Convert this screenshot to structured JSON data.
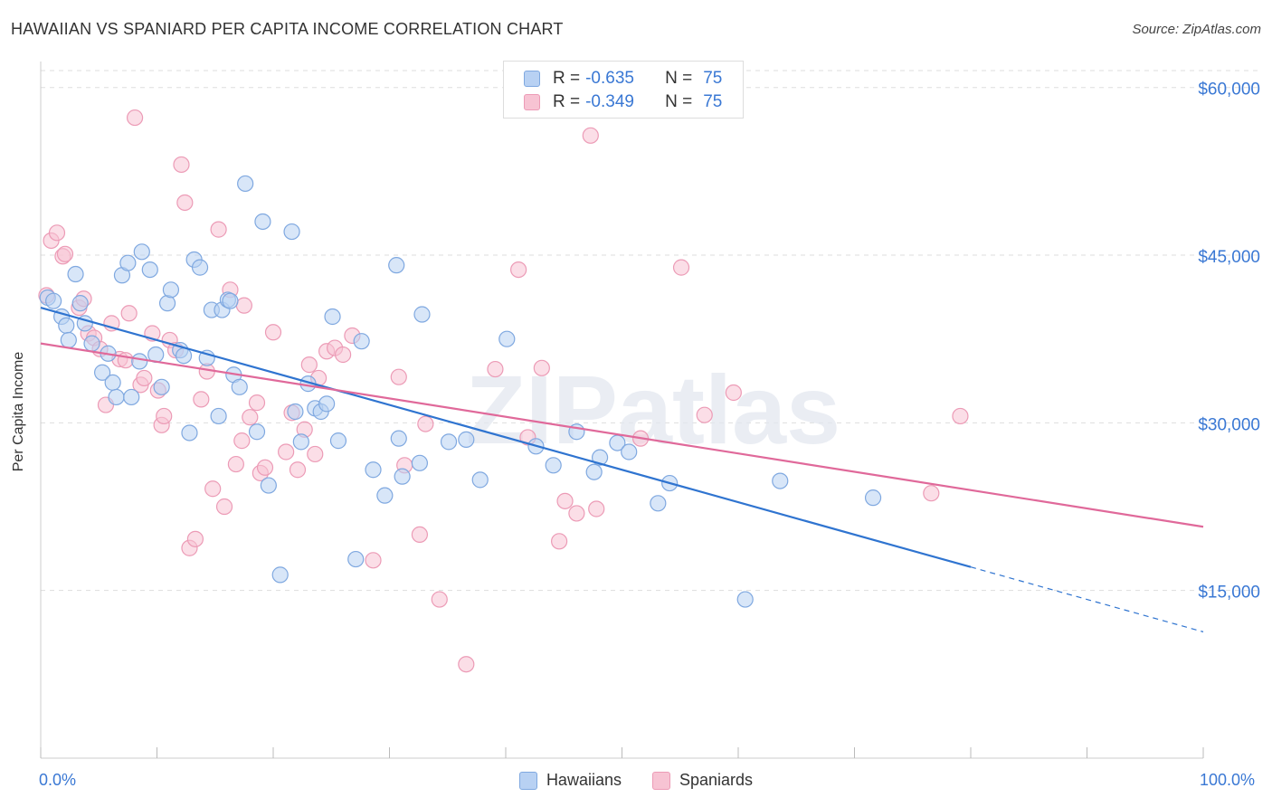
{
  "header": {
    "title": "HAWAIIAN VS SPANIARD PER CAPITA INCOME CORRELATION CHART",
    "source": "Source: ZipAtlas.com"
  },
  "watermark": "ZIPatlas",
  "legend_top": {
    "rows": [
      {
        "r_label": "R =",
        "r_value": "-0.635",
        "n_label": "N =",
        "n_value": "75"
      },
      {
        "r_label": "R =",
        "r_value": "-0.349",
        "n_label": "N =",
        "n_value": "75"
      }
    ]
  },
  "legend_bottom": [
    "Hawaiians",
    "Spaniards"
  ],
  "colors": {
    "hawaiians_fill": "#b8d1f3",
    "hawaiians_stroke": "#7fa8e0",
    "hawaiians_line": "#2f74d0",
    "spaniards_fill": "#f7c3d3",
    "spaniards_stroke": "#ec9bb6",
    "spaniards_line": "#e0699a",
    "axis_text": "#3a78d4",
    "grid": "#dddddd"
  },
  "chart_data": {
    "type": "scatter",
    "title": "HAWAIIAN VS SPANIARD PER CAPITA INCOME CORRELATION CHART",
    "xlabel": "",
    "ylabel": "Per Capita Income",
    "xlim": [
      0,
      100
    ],
    "ylim": [
      0,
      62000
    ],
    "x_tick_labels": [
      "0.0%",
      "100.0%"
    ],
    "y_ticks": [
      15000,
      30000,
      45000,
      60000
    ],
    "y_tick_labels": [
      "$15,000",
      "$30,000",
      "$45,000",
      "$60,000"
    ],
    "grid": true,
    "legend_position": "top-center",
    "series": [
      {
        "name": "Hawaiians",
        "r": -0.635,
        "n": 75,
        "trend": {
          "x0": 0,
          "y0": 40300,
          "x1": 80,
          "y1": 17100,
          "dashed_to_x": 100,
          "dashed_to_y": 11300
        },
        "points": [
          [
            0.6,
            41200
          ],
          [
            1.1,
            40900
          ],
          [
            1.8,
            39500
          ],
          [
            2.2,
            38700
          ],
          [
            2.4,
            37400
          ],
          [
            3.0,
            43300
          ],
          [
            3.4,
            40700
          ],
          [
            3.8,
            38900
          ],
          [
            4.4,
            37100
          ],
          [
            5.3,
            34500
          ],
          [
            5.8,
            36200
          ],
          [
            6.2,
            33600
          ],
          [
            6.5,
            32300
          ],
          [
            7.0,
            43200
          ],
          [
            7.5,
            44300
          ],
          [
            7.8,
            32300
          ],
          [
            8.5,
            35500
          ],
          [
            8.7,
            45300
          ],
          [
            9.4,
            43700
          ],
          [
            9.9,
            36100
          ],
          [
            10.4,
            33200
          ],
          [
            10.9,
            40700
          ],
          [
            11.2,
            41900
          ],
          [
            12.0,
            36500
          ],
          [
            12.3,
            36000
          ],
          [
            12.8,
            29100
          ],
          [
            13.2,
            44600
          ],
          [
            13.7,
            43900
          ],
          [
            14.3,
            35800
          ],
          [
            14.7,
            40100
          ],
          [
            15.6,
            40100
          ],
          [
            15.3,
            30600
          ],
          [
            16.1,
            41000
          ],
          [
            16.6,
            34300
          ],
          [
            17.1,
            33200
          ],
          [
            17.6,
            51400
          ],
          [
            18.6,
            29200
          ],
          [
            19.1,
            48000
          ],
          [
            19.6,
            24400
          ],
          [
            20.6,
            16400
          ],
          [
            21.6,
            47100
          ],
          [
            21.9,
            31000
          ],
          [
            22.4,
            28300
          ],
          [
            23.0,
            33500
          ],
          [
            23.6,
            31300
          ],
          [
            24.1,
            31000
          ],
          [
            24.6,
            31700
          ],
          [
            25.1,
            39500
          ],
          [
            25.6,
            28400
          ],
          [
            27.1,
            17800
          ],
          [
            27.6,
            37300
          ],
          [
            28.6,
            25800
          ],
          [
            29.6,
            23500
          ],
          [
            30.6,
            44100
          ],
          [
            30.8,
            28600
          ],
          [
            31.1,
            25200
          ],
          [
            32.6,
            26400
          ],
          [
            32.8,
            39700
          ],
          [
            35.1,
            28300
          ],
          [
            36.6,
            28500
          ],
          [
            37.8,
            24900
          ],
          [
            40.1,
            37500
          ],
          [
            42.6,
            27900
          ],
          [
            44.1,
            26200
          ],
          [
            46.1,
            29200
          ],
          [
            47.6,
            25600
          ],
          [
            48.1,
            26900
          ],
          [
            49.6,
            28200
          ],
          [
            50.6,
            27400
          ],
          [
            53.1,
            22800
          ],
          [
            54.1,
            24600
          ],
          [
            60.6,
            14200
          ],
          [
            63.6,
            24800
          ],
          [
            71.6,
            23300
          ],
          [
            16.3,
            40900
          ]
        ]
      },
      {
        "name": "Spaniards",
        "r": -0.349,
        "n": 75,
        "trend": {
          "x0": 0,
          "y0": 37100,
          "x1": 100,
          "y1": 20700
        },
        "points": [
          [
            0.5,
            41400
          ],
          [
            0.9,
            46300
          ],
          [
            1.4,
            47000
          ],
          [
            1.9,
            44900
          ],
          [
            2.1,
            45100
          ],
          [
            3.3,
            40300
          ],
          [
            3.7,
            41100
          ],
          [
            4.1,
            38000
          ],
          [
            4.6,
            37600
          ],
          [
            5.1,
            36600
          ],
          [
            5.6,
            31600
          ],
          [
            6.1,
            38900
          ],
          [
            6.8,
            35700
          ],
          [
            7.3,
            35600
          ],
          [
            7.6,
            39800
          ],
          [
            8.1,
            57300
          ],
          [
            8.6,
            33400
          ],
          [
            8.9,
            34000
          ],
          [
            9.6,
            38000
          ],
          [
            10.1,
            32900
          ],
          [
            10.4,
            29800
          ],
          [
            10.6,
            30600
          ],
          [
            11.1,
            37400
          ],
          [
            11.6,
            36500
          ],
          [
            12.1,
            53100
          ],
          [
            12.4,
            49700
          ],
          [
            12.8,
            18800
          ],
          [
            13.3,
            19600
          ],
          [
            13.8,
            32100
          ],
          [
            14.3,
            34600
          ],
          [
            14.8,
            24100
          ],
          [
            15.3,
            47300
          ],
          [
            15.8,
            22500
          ],
          [
            16.3,
            41900
          ],
          [
            16.8,
            26300
          ],
          [
            17.3,
            28400
          ],
          [
            17.5,
            40500
          ],
          [
            18.0,
            30500
          ],
          [
            18.6,
            31800
          ],
          [
            18.9,
            25500
          ],
          [
            19.3,
            26000
          ],
          [
            20.0,
            38100
          ],
          [
            21.1,
            27400
          ],
          [
            21.6,
            30900
          ],
          [
            22.1,
            25800
          ],
          [
            22.7,
            29400
          ],
          [
            23.1,
            35200
          ],
          [
            23.6,
            27200
          ],
          [
            23.9,
            34000
          ],
          [
            24.6,
            36400
          ],
          [
            25.3,
            36700
          ],
          [
            26.0,
            36100
          ],
          [
            26.8,
            37800
          ],
          [
            28.6,
            17700
          ],
          [
            30.8,
            34100
          ],
          [
            31.3,
            26200
          ],
          [
            32.6,
            20000
          ],
          [
            33.1,
            29900
          ],
          [
            34.3,
            14200
          ],
          [
            36.6,
            8400
          ],
          [
            39.1,
            34800
          ],
          [
            41.1,
            43700
          ],
          [
            41.9,
            28700
          ],
          [
            43.1,
            34900
          ],
          [
            44.6,
            19400
          ],
          [
            45.1,
            23000
          ],
          [
            46.1,
            21900
          ],
          [
            47.3,
            55700
          ],
          [
            47.8,
            22300
          ],
          [
            51.6,
            28600
          ],
          [
            55.1,
            43900
          ],
          [
            57.1,
            30700
          ],
          [
            59.6,
            32700
          ],
          [
            76.6,
            23700
          ],
          [
            79.1,
            30600
          ]
        ]
      }
    ]
  }
}
